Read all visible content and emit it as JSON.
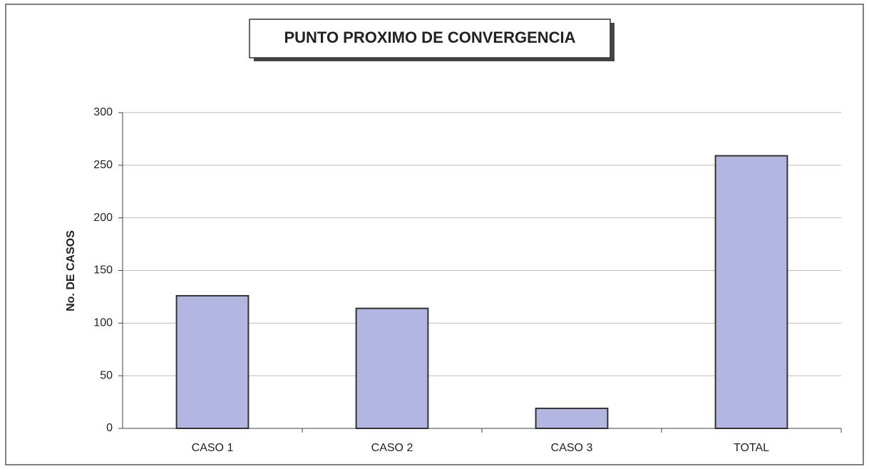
{
  "chart_data": {
    "type": "bar",
    "title": "PUNTO PROXIMO DE CONVERGENCIA",
    "y_label": "No. DE CASOS",
    "categories": [
      "CASO 1",
      "CASO 2",
      "CASO 3",
      "TOTAL"
    ],
    "values": [
      126,
      114,
      19,
      259
    ],
    "color": "#b4b6e2",
    "ylim": [
      0,
      300
    ],
    "yticks": [
      0,
      50,
      100,
      150,
      200,
      250,
      300
    ],
    "grid": true
  }
}
